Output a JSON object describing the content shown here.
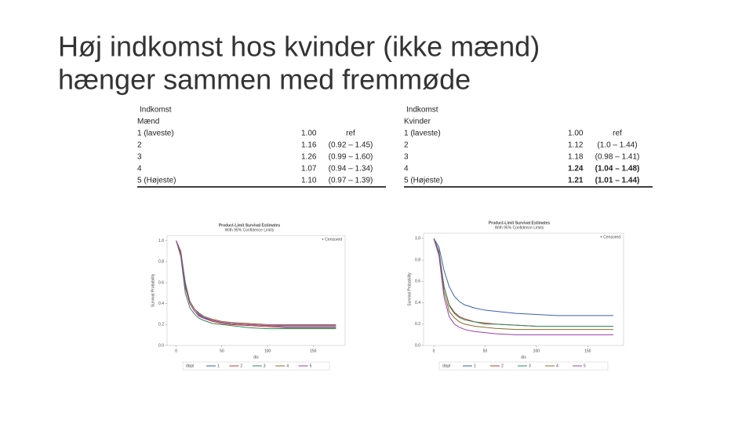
{
  "title": [
    "Høj indkomst hos kvinder (ikke mænd)",
    "hænger sammen med fremmøde"
  ],
  "tables": [
    {
      "header": [
        "Indkomst",
        "Mænd"
      ],
      "rows": [
        {
          "label": "1 (laveste)",
          "hr": "1.00",
          "ci": "ref",
          "bold": false
        },
        {
          "label": "2",
          "hr": "1.16",
          "ci": "(0.92  –  1.45)",
          "bold": false
        },
        {
          "label": "3",
          "hr": "1.26",
          "ci": "(0.99  –  1.60)",
          "bold": false
        },
        {
          "label": "4",
          "hr": "1.07",
          "ci": "(0.94  –  1.34)",
          "bold": false
        },
        {
          "label": "5 (Højeste)",
          "hr": "1.10",
          "ci": "(0.97  –  1.39)",
          "bold": false
        }
      ]
    },
    {
      "header": [
        "Indkomst",
        "Kvinder"
      ],
      "rows": [
        {
          "label": "1 (laveste)",
          "hr": "1.00",
          "ci": "ref",
          "bold": false
        },
        {
          "label": "2",
          "hr": "1.12",
          "ci": "(1.0  –  1.44)",
          "bold": false
        },
        {
          "label": "3",
          "hr": "1.18",
          "ci": "(0.98  –  1.41)",
          "bold": false
        },
        {
          "label": "4",
          "hr": "1.24",
          "ci": "(1.04  –  1.48)",
          "bold": true
        },
        {
          "label": "5 (Højeste)",
          "hr": "1.21",
          "ci": "(1.01  –  1.44)",
          "bold": true
        }
      ]
    }
  ],
  "chart_data": [
    {
      "type": "line",
      "title": "Product-Limit Survival Estimates",
      "subtitle": "With 95% Confidence Limits",
      "censored_label": "+ Censored",
      "y_label": "Survival Probability",
      "x_label": "dis",
      "legend_title": "displ",
      "x": [
        0,
        5,
        10,
        15,
        20,
        25,
        30,
        40,
        50,
        60,
        80,
        100,
        120,
        150,
        175
      ],
      "xlim": [
        -10,
        185
      ],
      "xticks": [
        0,
        50,
        100,
        150
      ],
      "ylim": [
        0,
        1.05
      ],
      "yticks": [
        {
          "value": 0,
          "label": "0.0"
        },
        {
          "value": 0.2,
          "label": "0.2"
        },
        {
          "value": 0.4,
          "label": "0.4"
        },
        {
          "value": 0.6,
          "label": "0.6"
        },
        {
          "value": 0.8,
          "label": "0.8"
        },
        {
          "value": 1,
          "label": "1.0"
        }
      ],
      "series": [
        {
          "name": "1",
          "color": "#3b5fb0",
          "values": [
            1,
            0.9,
            0.6,
            0.42,
            0.35,
            0.3,
            0.27,
            0.24,
            0.22,
            0.21,
            0.2,
            0.19,
            0.18,
            0.18,
            0.18
          ]
        },
        {
          "name": "2",
          "color": "#c0392b",
          "values": [
            1,
            0.88,
            0.55,
            0.4,
            0.33,
            0.28,
            0.26,
            0.23,
            0.21,
            0.2,
            0.19,
            0.18,
            0.17,
            0.17,
            0.17
          ]
        },
        {
          "name": "3",
          "color": "#2e8b57",
          "values": [
            1,
            0.85,
            0.5,
            0.36,
            0.3,
            0.26,
            0.24,
            0.21,
            0.2,
            0.19,
            0.17,
            0.16,
            0.16,
            0.16,
            0.16
          ]
        },
        {
          "name": "4",
          "color": "#8b6d2e",
          "values": [
            1,
            0.9,
            0.58,
            0.42,
            0.35,
            0.31,
            0.28,
            0.25,
            0.23,
            0.22,
            0.21,
            0.2,
            0.2,
            0.2,
            0.2
          ]
        },
        {
          "name": "5",
          "color": "#9b3fa8",
          "values": [
            1,
            0.87,
            0.55,
            0.4,
            0.33,
            0.29,
            0.26,
            0.24,
            0.22,
            0.21,
            0.2,
            0.19,
            0.19,
            0.19,
            0.19
          ]
        }
      ]
    },
    {
      "type": "line",
      "title": "Product-Limit Survival Estimates",
      "subtitle": "With 95% Confidence Limits",
      "censored_label": "+ Censored",
      "y_label": "Survival Probability",
      "x_label": "dis",
      "legend_title": "displ",
      "x": [
        0,
        5,
        10,
        15,
        20,
        25,
        30,
        40,
        50,
        60,
        80,
        100,
        120,
        150,
        175
      ],
      "xlim": [
        -10,
        185
      ],
      "xticks": [
        0,
        50,
        100,
        150
      ],
      "ylim": [
        0,
        1.05
      ],
      "yticks": [
        {
          "value": 0,
          "label": "0.0"
        },
        {
          "value": 0.2,
          "label": "0.2"
        },
        {
          "value": 0.4,
          "label": "0.4"
        },
        {
          "value": 0.6,
          "label": "0.6"
        },
        {
          "value": 0.8,
          "label": "0.8"
        },
        {
          "value": 1,
          "label": "1.0"
        }
      ],
      "series": [
        {
          "name": "1",
          "color": "#3b5fb0",
          "values": [
            1,
            0.92,
            0.7,
            0.55,
            0.46,
            0.41,
            0.38,
            0.35,
            0.33,
            0.32,
            0.3,
            0.29,
            0.28,
            0.28,
            0.28
          ]
        },
        {
          "name": "2",
          "color": "#c0392b",
          "values": [
            1,
            0.88,
            0.55,
            0.38,
            0.31,
            0.27,
            0.25,
            0.22,
            0.21,
            0.2,
            0.19,
            0.18,
            0.18,
            0.18,
            0.18
          ]
        },
        {
          "name": "3",
          "color": "#2e8b57",
          "values": [
            1,
            0.88,
            0.55,
            0.37,
            0.3,
            0.26,
            0.24,
            0.22,
            0.2,
            0.2,
            0.19,
            0.18,
            0.18,
            0.18,
            0.18
          ]
        },
        {
          "name": "4",
          "color": "#8b6d2e",
          "values": [
            1,
            0.86,
            0.5,
            0.32,
            0.26,
            0.22,
            0.2,
            0.18,
            0.17,
            0.16,
            0.15,
            0.15,
            0.15,
            0.15,
            0.15
          ]
        },
        {
          "name": "5",
          "color": "#9b3fa8",
          "values": [
            1,
            0.84,
            0.45,
            0.27,
            0.2,
            0.17,
            0.15,
            0.13,
            0.12,
            0.11,
            0.1,
            0.1,
            0.1,
            0.1,
            0.1
          ]
        }
      ]
    }
  ]
}
